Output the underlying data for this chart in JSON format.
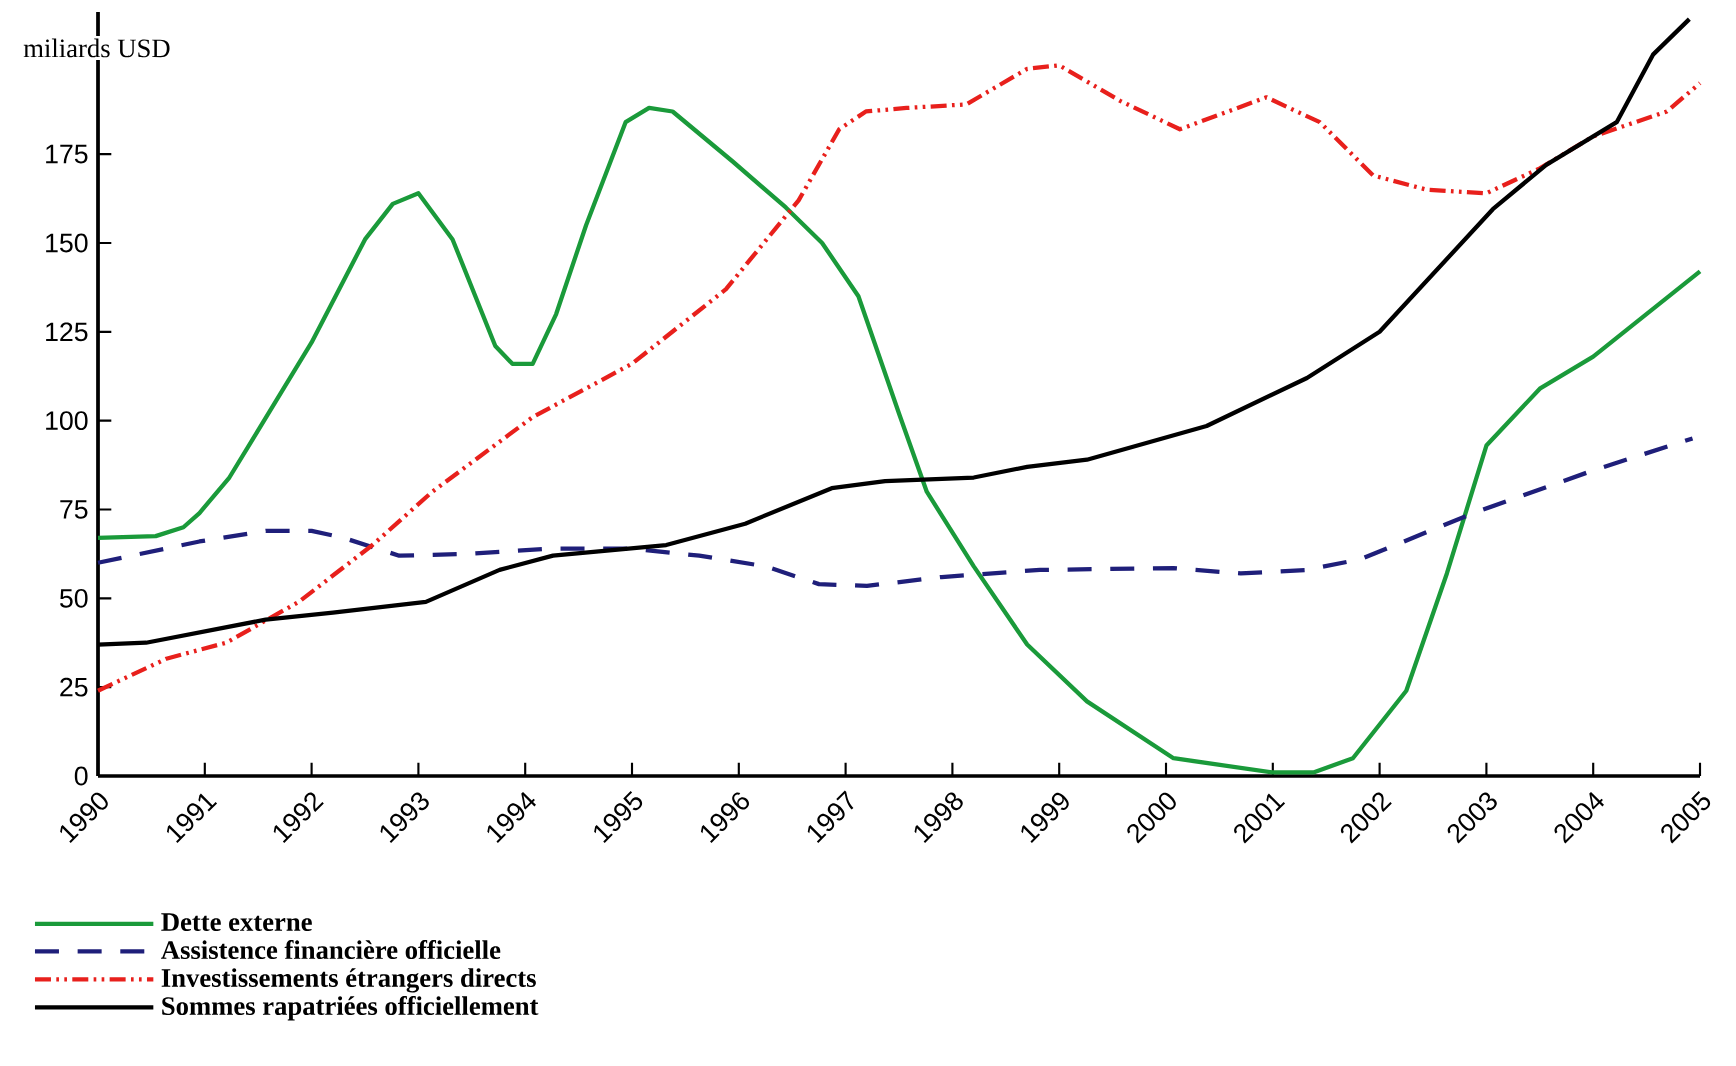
{
  "chart_data": {
    "type": "line",
    "title": "miliards USD",
    "xlim": [
      1990,
      2005
    ],
    "xticks": [
      1990,
      1991,
      1992,
      1993,
      1994,
      1995,
      1996,
      1997,
      1998,
      1999,
      2000,
      2001,
      2002,
      2003,
      2004,
      2005
    ],
    "ylim": [
      0,
      215
    ],
    "yticks": [
      0,
      25,
      50,
      75,
      100,
      125,
      150,
      175
    ],
    "grid": false,
    "legend": "bottom left",
    "marker": "none",
    "series": [
      {
        "name": "Dette externe",
        "color": "#1a9a3a",
        "line_style": "solid",
        "x": [
          1990,
          1990.54,
          1990.8,
          1990.95,
          1991.23,
          1992.0,
          1992.5,
          1992.76,
          1993.0,
          1993.32,
          1993.72,
          1993.88,
          1994.07,
          1994.29,
          1994.57,
          1994.94,
          1995.16,
          1995.38,
          1995.94,
          1996.44,
          1996.78,
          1997.12,
          1997.5,
          1997.76,
          1998.2,
          1998.7,
          1999.26,
          2000.07,
          2001.0,
          2001.38,
          2001.75,
          2002.25,
          2002.63,
          2003.0,
          2003.5,
          2004.0,
          2005.0
        ],
        "values": [
          67,
          67.5,
          70,
          74,
          84,
          122,
          151,
          161,
          164,
          151,
          121,
          116,
          116,
          130,
          155,
          184,
          188,
          187,
          173,
          160,
          150,
          135,
          102,
          80,
          59,
          37,
          21,
          5,
          1,
          1,
          5,
          24,
          57,
          93,
          109,
          118,
          142
        ]
      },
      {
        "name": "Assistence financière officielle",
        "color": "#1f1f7a",
        "line_style": "dashed",
        "x": [
          1990,
          1990.95,
          1991.57,
          1992.0,
          1992.3,
          1992.82,
          1993.44,
          1994.25,
          1995.0,
          1995.63,
          1996.25,
          1996.75,
          1997.2,
          1997.9,
          1998.82,
          2000.07,
          2000.7,
          2001.32,
          2001.82,
          2002.88,
          2004.0,
          2004.93
        ],
        "values": [
          60,
          66,
          69,
          69,
          67,
          62,
          62.5,
          64,
          64,
          62,
          59,
          54,
          53.5,
          56,
          58,
          58.5,
          57,
          58,
          61,
          74,
          86,
          95
        ]
      },
      {
        "name": "Investissements étrangers directs",
        "color": "#e8201c",
        "line_style": "dashdotdot",
        "x": [
          1990,
          1990.64,
          1991.2,
          1991.88,
          1992.57,
          1993.13,
          1994.07,
          1995.0,
          1995.88,
          1996.56,
          1996.94,
          1997.19,
          1997.57,
          1998.13,
          1998.7,
          1999.0,
          1999.57,
          2000.13,
          2000.94,
          2001.44,
          2001.94,
          2002.44,
          2003.0,
          2003.5,
          2004.0,
          2004.69,
          2005.0
        ],
        "values": [
          24,
          33,
          37.5,
          49,
          65,
          80,
          101,
          116,
          137,
          162,
          182,
          187,
          188,
          189,
          199,
          200,
          190,
          182,
          191,
          184,
          169,
          165,
          164,
          171,
          180,
          187,
          195
        ]
      },
      {
        "name": "Sommes rapatriées officiellement",
        "color": "#000000",
        "line_style": "solid",
        "x": [
          1990,
          1990.45,
          1991.57,
          1992.2,
          1993.07,
          1993.76,
          1994.26,
          1995.32,
          1996.06,
          1996.87,
          1997.37,
          1998.2,
          1998.7,
          1999.26,
          2000.38,
          2001.32,
          2002.0,
          2003.06,
          2003.56,
          2004.22,
          2004.56,
          2004.9
        ],
        "values": [
          37,
          37.5,
          44,
          46,
          49,
          58,
          62,
          65,
          71,
          81,
          83,
          84,
          87,
          89,
          98.5,
          112,
          125,
          159.5,
          172,
          184,
          203,
          213
        ]
      }
    ]
  }
}
